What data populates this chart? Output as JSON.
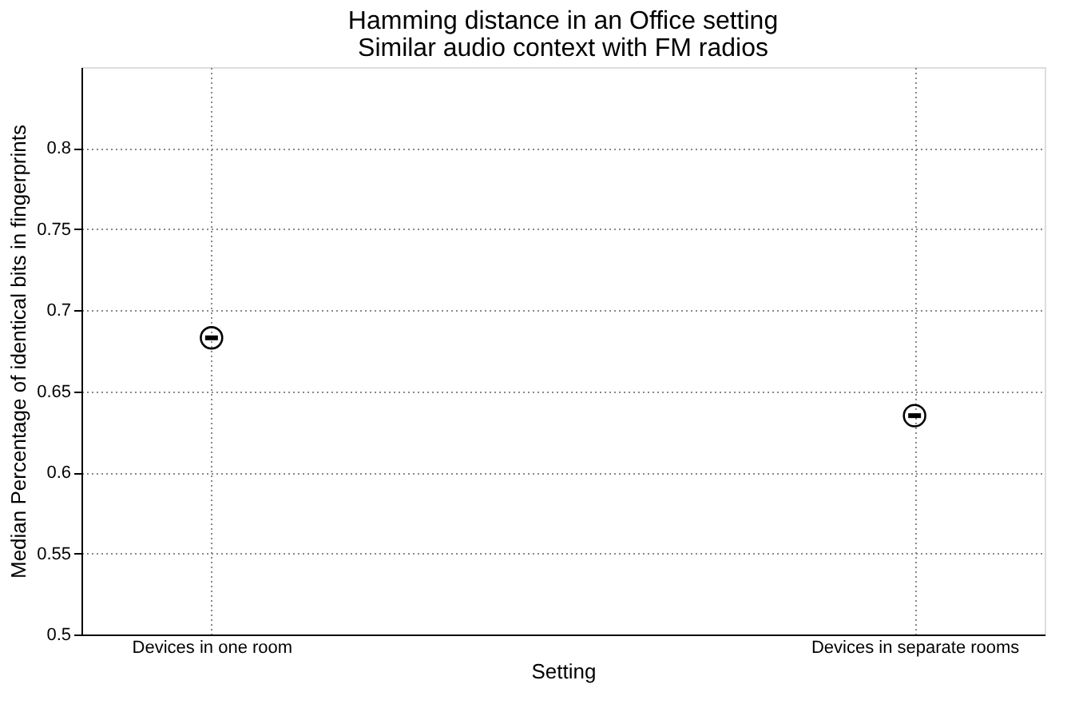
{
  "chart_data": {
    "type": "scatter",
    "title": "Hamming distance in an Office setting",
    "subtitle": "Similar audio context with FM radios",
    "xlabel": "Setting",
    "ylabel": "Median Percentage of identical bits in fingerprints",
    "categories": [
      "Devices in one room",
      "Devices in separate rooms"
    ],
    "series": [
      {
        "color": "#000000",
        "values": [
          0.683,
          0.635
        ]
      }
    ],
    "ylim": [
      0.5,
      0.85
    ],
    "yticks": [
      0.5,
      0.55,
      0.6,
      0.65,
      0.7,
      0.75,
      0.8
    ],
    "grid": true,
    "marker": "circle"
  }
}
